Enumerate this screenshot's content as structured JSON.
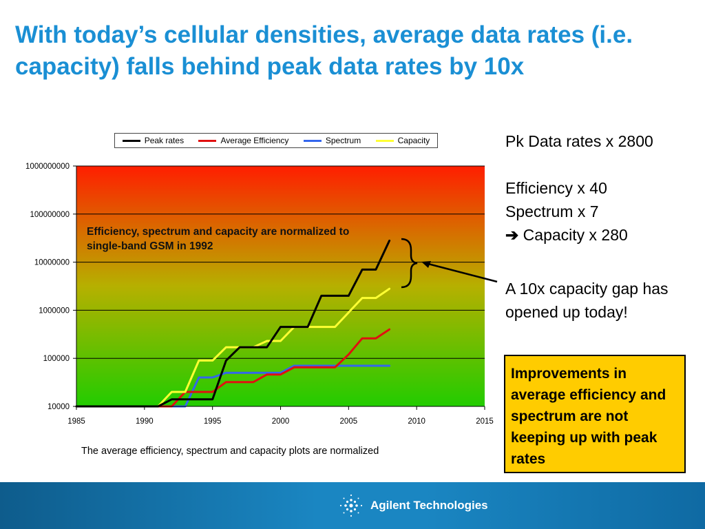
{
  "slide": {
    "title": "With today’s cellular densities, average data rates (i.e. capacity) falls behind peak data rates by 10x",
    "footnote": "The average efficiency, spectrum and capacity plots are normalized",
    "annotation": "Efficiency, spectrum and capacity are normalized to single-band GSM in 1992"
  },
  "side_panel": {
    "pk_rates": "Pk Data rates x 2800",
    "efficiency": "Efficiency x 40",
    "spectrum": "Spectrum x 7",
    "capacity_arrow_icon": "right-arrow-icon",
    "capacity_arrow_glyph": "➔",
    "capacity": "Capacity x 280",
    "gap_text": "A 10x capacity gap has opened up today!",
    "highlight": "Improvements in average efficiency and spectrum are not keeping up with peak rates"
  },
  "footer": {
    "brand": "Agilent Technologies",
    "logo_icon": "agilent-spark-icon"
  },
  "colors": {
    "title": "#1a8fd4",
    "peak": "#000000",
    "efficiency": "#e01010",
    "spectrum": "#3366ee",
    "capacity": "#ffff33",
    "highlight_box": "#ffcc00",
    "plot_top": "#ff1e00",
    "plot_bottom": "#22cc00"
  },
  "chart_data": {
    "type": "line",
    "xlim": [
      1985,
      2015
    ],
    "ylim": [
      10000,
      1000000000
    ],
    "yscale": "log",
    "grid": true,
    "legend_position": "top",
    "x_ticks": [
      "1985",
      "1990",
      "1995",
      "2000",
      "2005",
      "2010",
      "2015"
    ],
    "y_ticks": [
      "10000",
      "100000",
      "1000000",
      "10000000",
      "100000000",
      "1000000000"
    ],
    "series": [
      {
        "name": "Peak rates",
        "color": "#000000",
        "points": [
          [
            1985,
            10000
          ],
          [
            1991,
            10000
          ],
          [
            1992,
            14000
          ],
          [
            1995,
            14000
          ],
          [
            1996,
            90000
          ],
          [
            1997,
            170000
          ],
          [
            1999,
            170000
          ],
          [
            2000,
            450000
          ],
          [
            2002,
            450000
          ],
          [
            2003,
            2000000
          ],
          [
            2005,
            2000000
          ],
          [
            2006,
            7000000
          ],
          [
            2007,
            7000000
          ],
          [
            2008,
            28000000
          ]
        ]
      },
      {
        "name": "Average Efficiency",
        "color": "#e01010",
        "points": [
          [
            1991,
            10000
          ],
          [
            1992,
            10000
          ],
          [
            1993,
            20000
          ],
          [
            1995,
            20000
          ],
          [
            1996,
            32000
          ],
          [
            1998,
            32000
          ],
          [
            1999,
            46000
          ],
          [
            2000,
            46000
          ],
          [
            2001,
            65000
          ],
          [
            2004,
            65000
          ],
          [
            2005,
            120000
          ],
          [
            2006,
            260000
          ],
          [
            2007,
            260000
          ],
          [
            2008,
            400000
          ]
        ]
      },
      {
        "name": "Spectrum",
        "color": "#3366ee",
        "points": [
          [
            1991,
            10000
          ],
          [
            1993,
            10000
          ],
          [
            1994,
            40000
          ],
          [
            1995,
            40000
          ],
          [
            1996,
            50000
          ],
          [
            2000,
            50000
          ],
          [
            2001,
            70000
          ],
          [
            2008,
            70000
          ]
        ]
      },
      {
        "name": "Capacity",
        "color": "#ffff33",
        "points": [
          [
            1985,
            10000
          ],
          [
            1991,
            10000
          ],
          [
            1992,
            20000
          ],
          [
            1993,
            20000
          ],
          [
            1994,
            90000
          ],
          [
            1995,
            90000
          ],
          [
            1996,
            170000
          ],
          [
            1998,
            170000
          ],
          [
            1999,
            230000
          ],
          [
            2000,
            230000
          ],
          [
            2001,
            450000
          ],
          [
            2004,
            450000
          ],
          [
            2006,
            1800000
          ],
          [
            2007,
            1800000
          ],
          [
            2008,
            2800000
          ]
        ]
      }
    ]
  }
}
